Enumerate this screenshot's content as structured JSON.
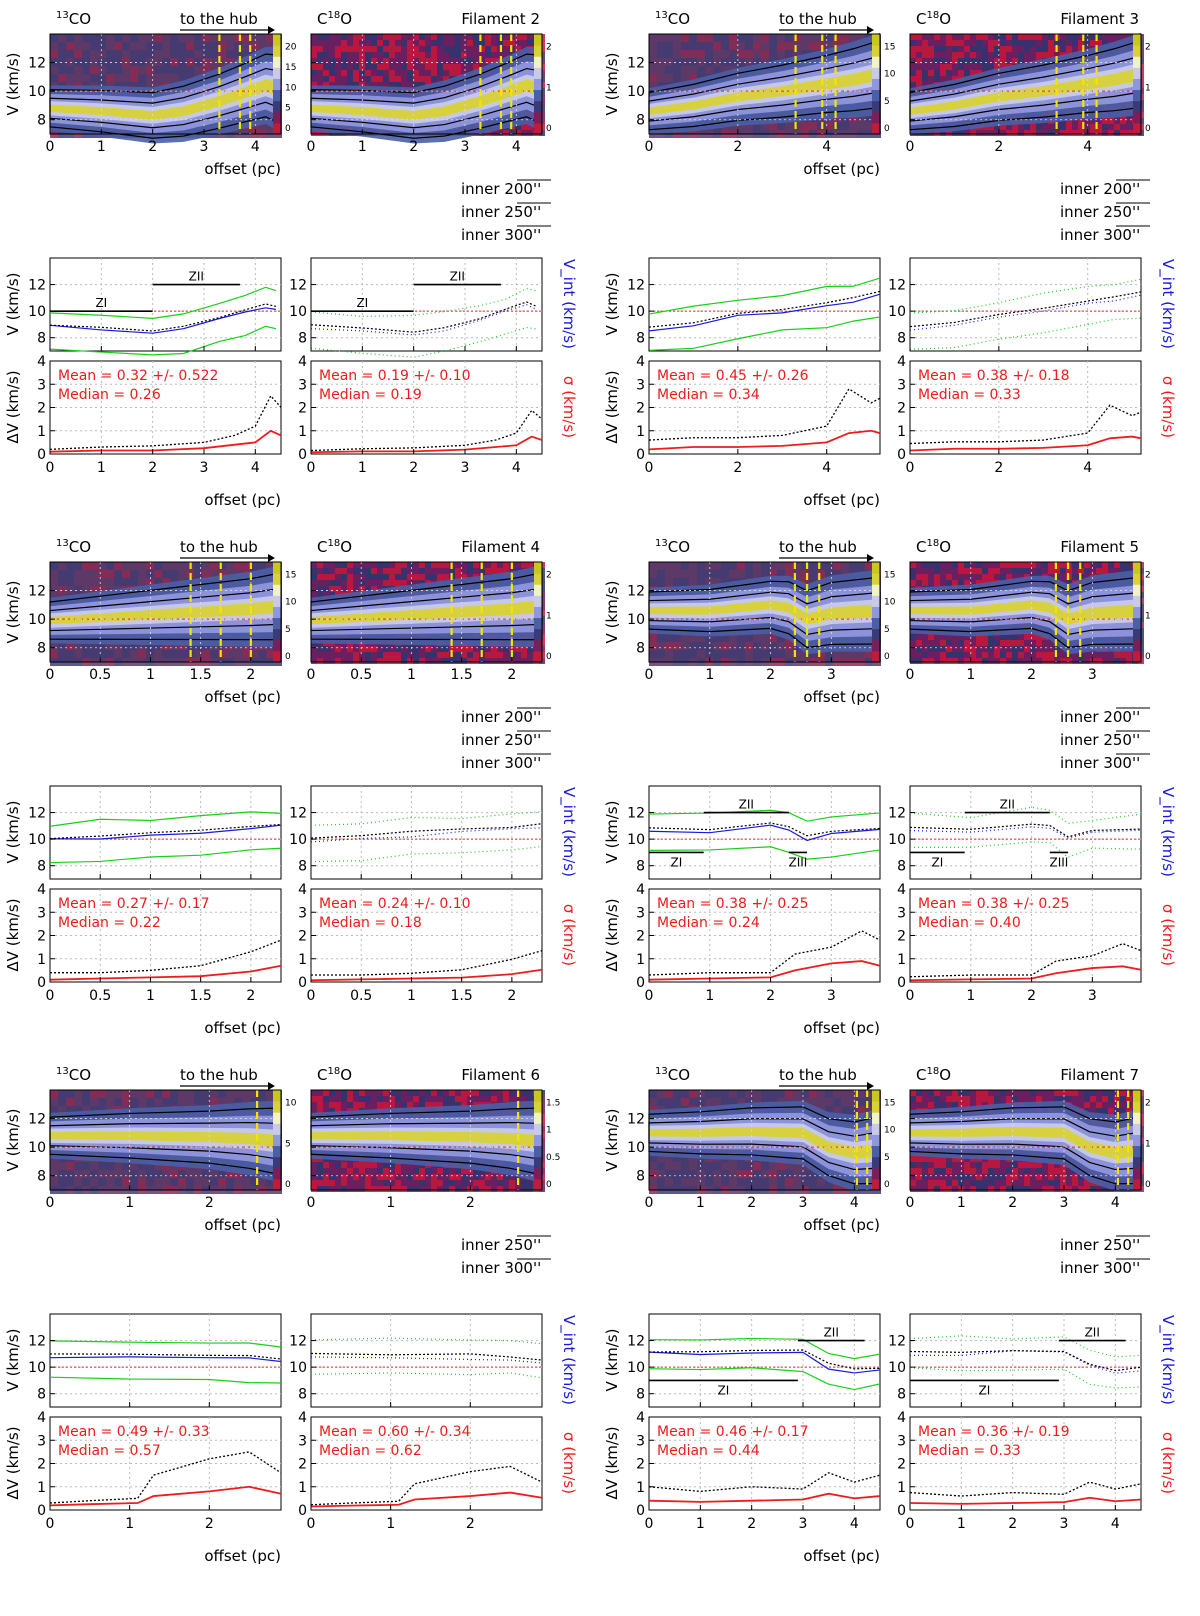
{
  "figure": {
    "labels": {
      "co13": "13CO",
      "c18o": "C18O",
      "to_hub": "to the hub",
      "v_axis": "V (km/s)",
      "dv_axis": "ΔV (km/s)",
      "vint_axis": "V_int (km/s)",
      "sigma_axis": "σ (km/s)",
      "offset_axis": "offset (pc)",
      "inner200": "inner 200''",
      "inner250": "inner 250''",
      "inner300": "inner 300''",
      "mean_fmt": "Mean = {m} +/- {s}",
      "median_fmt": "Median = {v}"
    },
    "colors": {
      "velocity_line": "#1818e0",
      "sigma_line": "#ee1c1c",
      "edge_line": "#18d018",
      "dashed_vcut": "#f4e400",
      "ref_line": "#ee2222"
    },
    "colormap": [
      "#c01a3c",
      "#7a1f5a",
      "#3a3b76",
      "#4a5fa6",
      "#8f97dd",
      "#c9cae8",
      "#f1f2c6",
      "#d8d236",
      "#c9c61e"
    ]
  },
  "chart_data": [
    {
      "type": "heatmap",
      "filament": "Filament 2",
      "xlim": [
        0,
        4.5
      ],
      "xticks": [
        0,
        1,
        2,
        3,
        4
      ],
      "ylim": [
        7,
        14
      ],
      "yticks": [
        8,
        10,
        12
      ],
      "co13_colorbar_ticks": [
        0,
        5,
        10,
        15,
        20
      ],
      "c18o_colorbar_ticks": [
        0,
        1,
        2
      ],
      "hub_cuts_pc": [
        3.3,
        3.7,
        3.9
      ],
      "inner_radii": [
        "200''",
        "250''",
        "300''"
      ],
      "centroid_velocity": {
        "x": [
          0,
          1,
          2,
          2.6,
          3.3,
          3.8,
          4.2,
          4.4
        ],
        "y": [
          8.8,
          8.6,
          8.3,
          8.6,
          9.3,
          9.9,
          10.4,
          10.2
        ]
      },
      "zones": [
        {
          "label": "ZI",
          "x": [
            0,
            2
          ],
          "v": 10
        },
        {
          "label": "ZII",
          "x": [
            2,
            3.7
          ],
          "v": 12
        }
      ],
      "co13_stats": {
        "mean": "0.32",
        "std": "0.522",
        "median": "0.26"
      },
      "c18o_stats": {
        "mean": "0.19",
        "std": "0.10",
        "median": "0.19"
      },
      "sigma": {
        "x": [
          0,
          1,
          2,
          3,
          3.6,
          4,
          4.3,
          4.5
        ],
        "y": [
          0.1,
          0.15,
          0.15,
          0.25,
          0.4,
          0.5,
          1.0,
          0.8
        ]
      },
      "dv": {
        "x": [
          0,
          1,
          2,
          3,
          3.6,
          4,
          4.3,
          4.5
        ],
        "y": [
          0.2,
          0.3,
          0.35,
          0.5,
          0.8,
          1.2,
          2.5,
          2.0
        ]
      }
    },
    {
      "type": "heatmap",
      "filament": "Filament 3",
      "xlim": [
        0,
        5.2
      ],
      "xticks": [
        0,
        2,
        4
      ],
      "ylim": [
        7,
        14
      ],
      "yticks": [
        8,
        10,
        12
      ],
      "co13_colorbar_ticks": [
        0,
        5,
        10,
        15
      ],
      "c18o_colorbar_ticks": [
        0,
        1,
        2
      ],
      "hub_cuts_pc": [
        3.3,
        3.9,
        4.2
      ],
      "inner_radii": [
        "200''",
        "250''",
        "300''"
      ],
      "centroid_velocity": {
        "x": [
          0,
          1,
          2,
          3,
          4,
          4.6,
          5.2
        ],
        "y": [
          8.6,
          9.0,
          9.6,
          10.0,
          10.5,
          10.8,
          11.2
        ]
      },
      "zones": [],
      "co13_stats": {
        "mean": "0.45",
        "std": "0.26",
        "median": "0.34"
      },
      "c18o_stats": {
        "mean": "0.38",
        "std": "0.18",
        "median": "0.33"
      },
      "sigma": {
        "x": [
          0,
          1,
          2,
          3,
          4,
          4.5,
          5,
          5.2
        ],
        "y": [
          0.2,
          0.3,
          0.3,
          0.35,
          0.5,
          0.9,
          1.0,
          0.9
        ]
      },
      "dv": {
        "x": [
          0,
          1,
          2,
          3,
          4,
          4.5,
          5,
          5.2
        ],
        "y": [
          0.6,
          0.7,
          0.7,
          0.8,
          1.2,
          2.8,
          2.2,
          2.4
        ]
      }
    },
    {
      "type": "heatmap",
      "filament": "Filament 4",
      "xlim": [
        0,
        2.3
      ],
      "xticks": [
        0,
        0.5,
        1,
        1.5,
        2
      ],
      "ylim": [
        7,
        14
      ],
      "yticks": [
        8,
        10,
        12
      ],
      "co13_colorbar_ticks": [
        0,
        5,
        10,
        15
      ],
      "c18o_colorbar_ticks": [
        0,
        1,
        2
      ],
      "hub_cuts_pc": [
        1.4,
        1.7,
        2.0
      ],
      "inner_radii": [
        "200''",
        "250''",
        "300''"
      ],
      "centroid_velocity": {
        "x": [
          0,
          0.5,
          1,
          1.5,
          2,
          2.3
        ],
        "y": [
          9.9,
          10.1,
          10.3,
          10.5,
          10.7,
          10.9
        ]
      },
      "zones": [],
      "co13_stats": {
        "mean": "0.27",
        "std": "0.17",
        "median": "0.22"
      },
      "c18o_stats": {
        "mean": "0.24",
        "std": "0.10",
        "median": "0.18"
      },
      "sigma": {
        "x": [
          0,
          0.5,
          1,
          1.5,
          2,
          2.3
        ],
        "y": [
          0.1,
          0.15,
          0.2,
          0.25,
          0.45,
          0.7
        ]
      },
      "dv": {
        "x": [
          0,
          0.5,
          1,
          1.5,
          2,
          2.3
        ],
        "y": [
          0.4,
          0.4,
          0.5,
          0.7,
          1.3,
          1.8
        ]
      }
    },
    {
      "type": "heatmap",
      "filament": "Filament 5",
      "xlim": [
        0,
        3.8
      ],
      "xticks": [
        0,
        1,
        2,
        3
      ],
      "ylim": [
        7,
        14
      ],
      "yticks": [
        8,
        10,
        12
      ],
      "co13_colorbar_ticks": [
        0,
        5,
        10,
        15
      ],
      "c18o_colorbar_ticks": [
        0,
        1,
        2
      ],
      "hub_cuts_pc": [
        2.4,
        2.6,
        2.8
      ],
      "inner_radii": [
        "200''",
        "250''",
        "300''"
      ],
      "centroid_velocity": {
        "x": [
          0,
          1,
          2,
          2.3,
          2.6,
          3,
          3.8
        ],
        "y": [
          10.6,
          10.6,
          11.0,
          10.8,
          10.0,
          10.4,
          10.6
        ]
      },
      "zones": [
        {
          "label": "ZI",
          "x": [
            0,
            0.9
          ],
          "v": 9
        },
        {
          "label": "ZII",
          "x": [
            0.9,
            2.3
          ],
          "v": 12
        },
        {
          "label": "ZIII",
          "x": [
            2.3,
            2.6
          ],
          "v": 9
        }
      ],
      "co13_stats": {
        "mean": "0.38",
        "std": "0.25",
        "median": "0.24"
      },
      "c18o_stats": {
        "mean": "0.38",
        "std": "0.25",
        "median": "0.40"
      },
      "sigma": {
        "x": [
          0,
          1,
          2,
          2.4,
          3,
          3.5,
          3.8
        ],
        "y": [
          0.1,
          0.15,
          0.2,
          0.5,
          0.8,
          0.9,
          0.7
        ]
      },
      "dv": {
        "x": [
          0,
          1,
          2,
          2.4,
          3,
          3.5,
          3.8
        ],
        "y": [
          0.3,
          0.4,
          0.4,
          1.2,
          1.5,
          2.2,
          1.8
        ]
      }
    },
    {
      "type": "heatmap",
      "filament": "Filament 6",
      "xlim": [
        0,
        2.9
      ],
      "xticks": [
        0,
        1,
        2
      ],
      "ylim": [
        7,
        14
      ],
      "yticks": [
        8,
        10,
        12
      ],
      "co13_colorbar_ticks": [
        0,
        5,
        10
      ],
      "c18o_colorbar_ticks": [
        0,
        0.5,
        1,
        1.5
      ],
      "hub_cuts_pc": [
        2.6,
        2.85
      ],
      "inner_radii": [
        "250''",
        "300''"
      ],
      "centroid_velocity": {
        "x": [
          0,
          1,
          2,
          2.5,
          2.9
        ],
        "y": [
          10.8,
          10.8,
          10.7,
          10.6,
          10.4
        ]
      },
      "zones": [],
      "co13_stats": {
        "mean": "0.49",
        "std": "0.33",
        "median": "0.57"
      },
      "c18o_stats": {
        "mean": "0.60",
        "std": "0.34",
        "median": "0.62"
      },
      "sigma": {
        "x": [
          0,
          0.5,
          1.1,
          1.3,
          2,
          2.5,
          2.9
        ],
        "y": [
          0.2,
          0.25,
          0.3,
          0.6,
          0.8,
          1.0,
          0.7
        ]
      },
      "dv": {
        "x": [
          0,
          0.5,
          1.1,
          1.3,
          2,
          2.5,
          2.9
        ],
        "y": [
          0.3,
          0.4,
          0.5,
          1.5,
          2.2,
          2.5,
          1.6
        ]
      }
    },
    {
      "type": "heatmap",
      "filament": "Filament 7",
      "xlim": [
        0,
        4.5
      ],
      "xticks": [
        0,
        1,
        2,
        3,
        4
      ],
      "ylim": [
        7,
        14
      ],
      "yticks": [
        8,
        10,
        12
      ],
      "co13_colorbar_ticks": [
        0,
        5,
        10,
        15
      ],
      "c18o_colorbar_ticks": [
        0,
        1,
        2
      ],
      "hub_cuts_pc": [
        4.05,
        4.25
      ],
      "inner_radii": [
        "250''",
        "300''"
      ],
      "centroid_velocity": {
        "x": [
          0,
          1,
          2,
          3,
          3.5,
          4,
          4.5
        ],
        "y": [
          11.0,
          11.0,
          11.1,
          11.0,
          10.0,
          9.6,
          9.8
        ]
      },
      "zones": [
        {
          "label": "ZI",
          "x": [
            0,
            2.9
          ],
          "v": 9
        },
        {
          "label": "ZII",
          "x": [
            2.9,
            4.2
          ],
          "v": 12
        }
      ],
      "co13_stats": {
        "mean": "0.46",
        "std": "0.17",
        "median": "0.44"
      },
      "c18o_stats": {
        "mean": "0.36",
        "std": "0.19",
        "median": "0.33"
      },
      "sigma": {
        "x": [
          0,
          1,
          2,
          3,
          3.5,
          4,
          4.5
        ],
        "y": [
          0.4,
          0.35,
          0.4,
          0.45,
          0.7,
          0.5,
          0.6
        ]
      },
      "dv": {
        "x": [
          0,
          1,
          2,
          3,
          3.5,
          4,
          4.5
        ],
        "y": [
          1.0,
          0.8,
          1.0,
          0.9,
          1.6,
          1.2,
          1.5
        ]
      }
    }
  ]
}
